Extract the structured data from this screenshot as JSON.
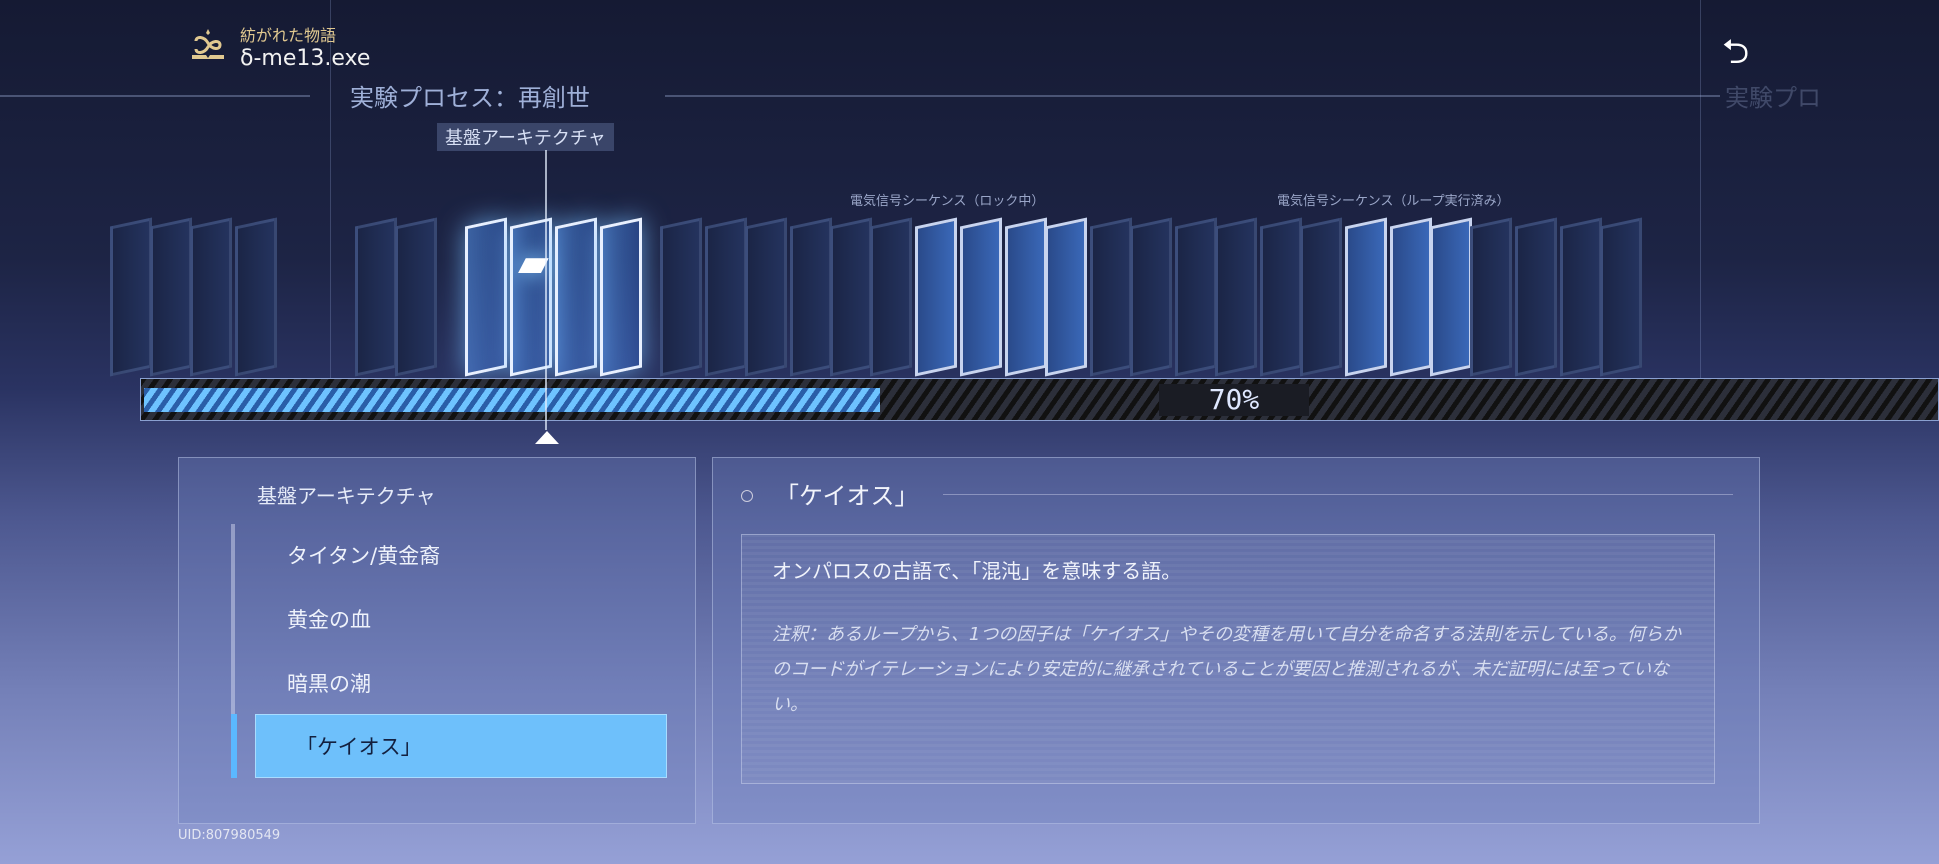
{
  "header": {
    "subtitle": "紡がれた物語",
    "title": "δ-me13.exe",
    "logo_icon": "infinity-book-icon",
    "back_icon": "return-arrow-icon"
  },
  "process": {
    "title": "実験プロセス：再創世",
    "ghost_title": "実験プロ",
    "current_node": "基盤アーキテクチャ",
    "sequence_labels": [
      "電気信号シーケンス（ロック中）",
      "電気信号シーケンス（ループ実行済み）"
    ]
  },
  "progress": {
    "percent": 70,
    "label": "70%"
  },
  "sidebar": {
    "category": "基盤アーキテクチャ",
    "items": [
      {
        "label": "タイタン/黄金裔",
        "selected": false
      },
      {
        "label": "黄金の血",
        "selected": false
      },
      {
        "label": "暗黒の潮",
        "selected": false
      },
      {
        "label": "「ケイオス」",
        "selected": true
      }
    ]
  },
  "detail": {
    "title": "「ケイオス」",
    "description": "オンパロスの古語で、「混沌」を意味する語。",
    "note": "注釈：あるループから、1つの因子は「ケイオス」やその変種を用いて自分を命名する法則を示している。何らかのコードがイテレーションにより安定的に継承されていることが要因と推測されるが、未だ証明には至っていない。"
  },
  "footer": {
    "uid": "UID:807980549"
  },
  "colors": {
    "accent": "#6ec0fb",
    "gold": "#e0c890"
  }
}
